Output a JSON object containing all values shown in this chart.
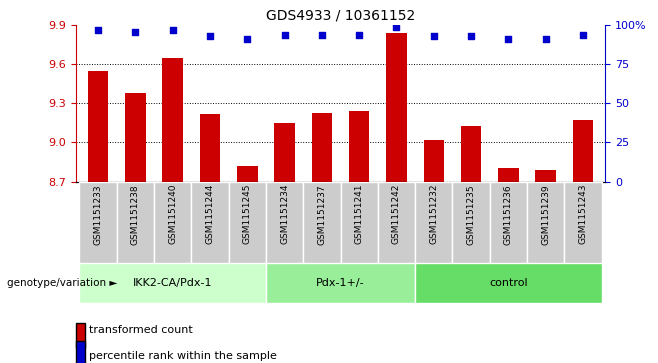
{
  "title": "GDS4933 / 10361152",
  "samples": [
    "GSM1151233",
    "GSM1151238",
    "GSM1151240",
    "GSM1151244",
    "GSM1151245",
    "GSM1151234",
    "GSM1151237",
    "GSM1151241",
    "GSM1151242",
    "GSM1151232",
    "GSM1151235",
    "GSM1151236",
    "GSM1151239",
    "GSM1151243"
  ],
  "transformed_counts": [
    9.55,
    9.38,
    9.65,
    9.22,
    8.82,
    9.15,
    9.23,
    9.24,
    9.84,
    9.02,
    9.13,
    8.8,
    8.79,
    9.17
  ],
  "percentile_ranks": [
    97,
    96,
    97,
    93,
    91,
    94,
    94,
    94,
    99,
    93,
    93,
    91,
    91,
    94
  ],
  "groups": [
    {
      "label": "IKK2-CA/Pdx-1",
      "start": 0,
      "end": 5,
      "color": "#ccffcc"
    },
    {
      "label": "Pdx-1+/-",
      "start": 5,
      "end": 9,
      "color": "#99ee99"
    },
    {
      "label": "control",
      "start": 9,
      "end": 14,
      "color": "#66dd66"
    }
  ],
  "ylim_left": [
    8.7,
    9.9
  ],
  "ylim_right": [
    0,
    100
  ],
  "yticks_left": [
    8.7,
    9.0,
    9.3,
    9.6,
    9.9
  ],
  "yticks_right": [
    0,
    25,
    50,
    75,
    100
  ],
  "bar_color": "#cc0000",
  "dot_color": "#0000cc",
  "sample_bg_color": "#cccccc",
  "grid_color": "#000000",
  "legend_bar_label": "transformed count",
  "legend_dot_label": "percentile rank within the sample",
  "genotype_label": "genotype/variation"
}
